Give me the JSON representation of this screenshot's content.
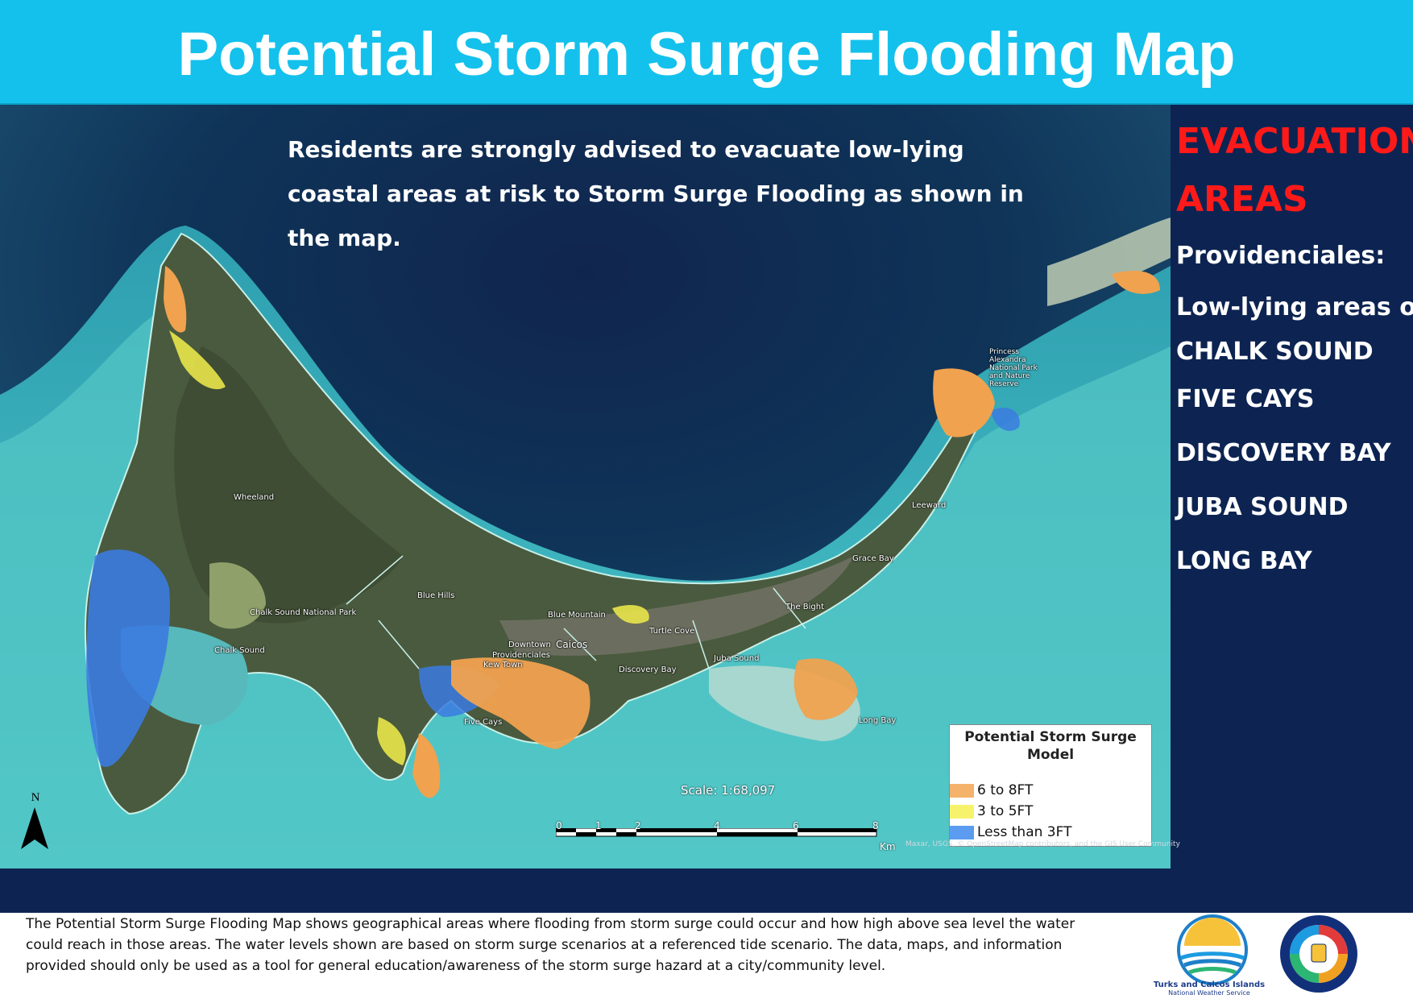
{
  "header": {
    "title": "Potential Storm Surge Flooding Map"
  },
  "map": {
    "advisory": "Residents are strongly advised to evacuate low-lying coastal areas at risk to Storm Surge Flooding as shown in the map.",
    "place_labels": [
      "Wheeland",
      "Chalk Sound National Park",
      "Chalk Sound",
      "Blue Hills",
      "Blue Mountain",
      "Downtown",
      "Caicos",
      "Providenciales",
      "Kew Town",
      "Turtle Cove",
      "Discovery Bay",
      "Juba Sound",
      "The Bight",
      "Grace Bay",
      "Leeward",
      "Long Bay",
      "Five Cays",
      "Princess Alexandra National Park and Nature Reserve"
    ],
    "scale": "Scale: 1:68,097",
    "scale_ticks": [
      "0",
      "1",
      "2",
      "4",
      "6",
      "8"
    ],
    "scale_unit": "Km",
    "north_label": "N",
    "attribution": "Maxar, USGS, © OpenStreetMap contributors, and the GIS User Community"
  },
  "legend": {
    "title": "Potential Storm Surge Model",
    "items": [
      {
        "label": "6 to 8FT",
        "color": "#f5b26b"
      },
      {
        "label": "3 to 5FT",
        "color": "#f7f26b"
      },
      {
        "label": "Less than 3FT",
        "color": "#5b9cf0"
      }
    ]
  },
  "sidebar": {
    "heading_line1": "EVACUATION",
    "heading_line2": "AREAS",
    "island": "Providenciales:",
    "subheading": "Low-lying areas of:",
    "areas": [
      "CHALK SOUND",
      "FIVE CAYS",
      "DISCOVERY BAY",
      "JUBA SOUND",
      "LONG BAY"
    ]
  },
  "footer": {
    "text": "The Potential Storm Surge Flooding Map shows geographical areas where flooding from storm surge could occur and how high above sea level the water could reach in those areas.  The water levels shown are based on storm surge scenarios at a referenced tide scenario. The data, maps, and information provided should only be used as a tool for general education/awareness of the storm surge hazard at a city/community level.",
    "logo1_name": "Turks and Caicos Islands",
    "logo1_sub": "National Weather Service"
  }
}
